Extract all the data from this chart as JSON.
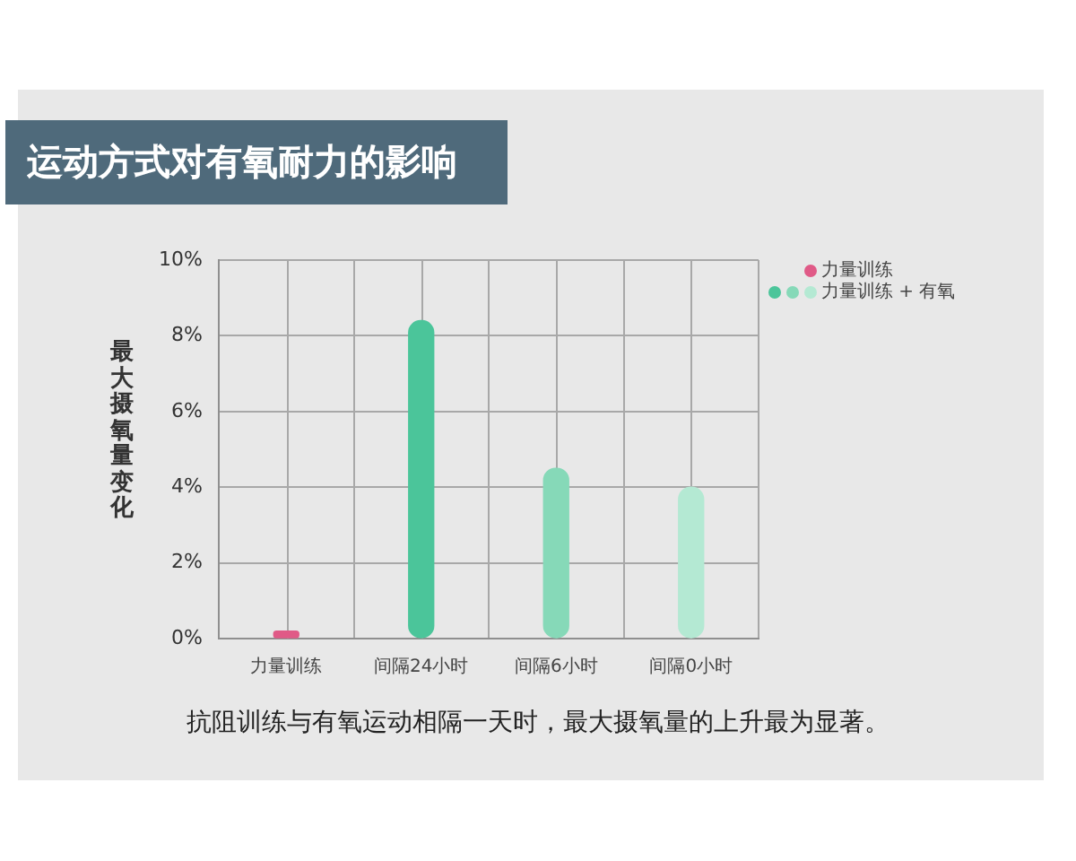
{
  "chart_data": {
    "type": "bar",
    "title": "运动方式对有氧耐力的影响",
    "ylabel": "最大摄氧量变化",
    "annotations": [
      "抗阻训练与有氧运动相隔一天时，最大摄氧量的上升最为显著。"
    ],
    "categories": [
      "力量训练",
      "间隔24小时",
      "间隔6小时",
      "间隔0小时"
    ],
    "series": [
      {
        "name": "力量训练",
        "color": "#e05a87",
        "values": [
          0.2,
          null,
          null,
          null
        ]
      },
      {
        "name": "力量训练 + 有氧",
        "colors": [
          null,
          "#4bc59a",
          "#86d9b8",
          "#b4e9d3"
        ],
        "values": [
          null,
          8.4,
          4.5,
          4.0
        ]
      }
    ],
    "ylim": [
      0,
      10
    ],
    "yticks": [
      {
        "value": 0,
        "label": "0%"
      },
      {
        "value": 2,
        "label": "2%"
      },
      {
        "value": 4,
        "label": "4%"
      },
      {
        "value": 6,
        "label": "6%"
      },
      {
        "value": 8,
        "label": "8%"
      },
      {
        "value": 10,
        "label": "10%"
      }
    ],
    "grid": true,
    "legend": "top right"
  }
}
